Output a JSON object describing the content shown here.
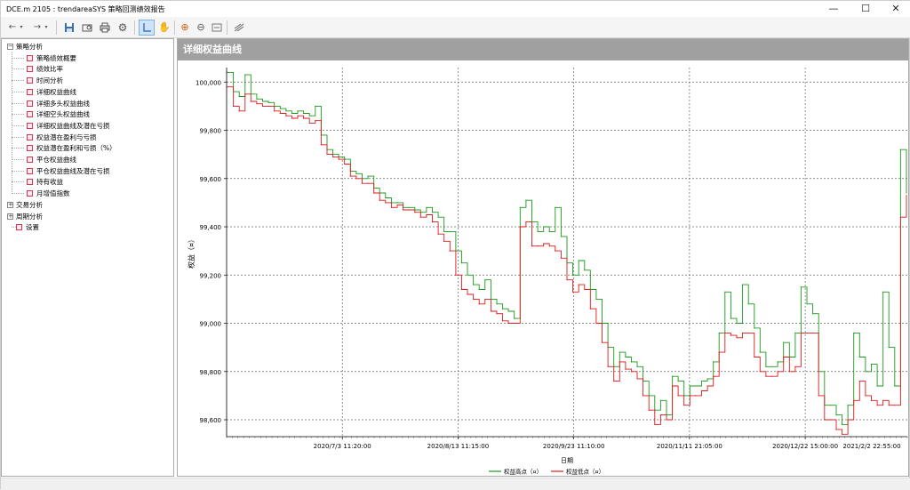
{
  "window": {
    "title": "DCE.m 2105 : trendareaSYS 策略回测绩效报告",
    "minimize_icon": "minimize-icon",
    "maximize_icon": "maximize-icon",
    "close_icon": "close-icon"
  },
  "toolbar": {
    "back_icon": "back-arrow-icon",
    "forward_icon": "forward-arrow-icon",
    "save_icon": "save-icon",
    "print_preview_icon": "print-preview-icon",
    "print_icon": "print-icon",
    "settings_icon": "gear-icon",
    "crosshair_icon": "crosshair-icon",
    "pan_icon": "hand-icon",
    "zoom_in_icon": "zoom-in-icon",
    "zoom_out_icon": "zoom-out-icon",
    "fit_icon": "fit-icon",
    "export_icon": "export-icon"
  },
  "tree": {
    "groups": [
      {
        "label": "策略分析",
        "expanded": true,
        "items": [
          "策略绩效概要",
          "绩效比率",
          "时间分析",
          "详细权益曲线",
          "详细多头权益曲线",
          "详细空头权益曲线",
          "详细权益曲线及潜在亏损",
          "权益潜在盈利与亏损",
          "权益潜在盈利和亏损（%）",
          "平仓权益曲线",
          "平仓权益曲线及潜在亏损",
          "持有收益",
          "月增值指数"
        ]
      },
      {
        "label": "交易分析",
        "expanded": false,
        "items": []
      },
      {
        "label": "周期分析",
        "expanded": false,
        "items": []
      }
    ],
    "settings_label": "设置"
  },
  "panel": {
    "title": "详细权益曲线"
  },
  "chart_data": {
    "type": "line",
    "title": "",
    "xlabel": "日期",
    "ylabel": "权益（¤）",
    "ylim": [
      98530,
      100060
    ],
    "y_ticks": [
      "100,000",
      "99,800",
      "99,600",
      "99,400",
      "99,200",
      "99,000",
      "98,800",
      "98,600"
    ],
    "y_tick_values": [
      100000,
      99800,
      99600,
      99400,
      99200,
      99000,
      98800,
      98600
    ],
    "x_ticks": [
      "2020/7/3 11:20:00",
      "2020/8/13 11:15:00",
      "2020/9/23 11:10:00",
      "2020/11/11 21:05:00",
      "2020/12/22 15:00:00",
      "2021/2/2 22:55:00"
    ],
    "x_tick_positions": [
      0.17,
      0.34,
      0.51,
      0.68,
      0.85,
      1.02
    ],
    "grid": true,
    "legend_position": "bottom",
    "series": [
      {
        "name": "权益高点（¤）",
        "color": "#1a9a1a",
        "values": [
          100040,
          99960,
          99940,
          100030,
          99950,
          99930,
          99920,
          99915,
          99900,
          99890,
          99880,
          99870,
          99880,
          99870,
          99860,
          99900,
          99780,
          99720,
          99700,
          99690,
          99680,
          99630,
          99620,
          99600,
          99610,
          99560,
          99540,
          99520,
          99500,
          99500,
          99480,
          99480,
          99470,
          99460,
          99480,
          99460,
          99440,
          99380,
          99380,
          99300,
          99250,
          99200,
          99160,
          99140,
          99180,
          99100,
          99080,
          99060,
          99050,
          99020,
          99480,
          99510,
          99420,
          99380,
          99400,
          99380,
          99480,
          99360,
          99250,
          99200,
          99260,
          99220,
          99140,
          99100,
          99000,
          98900,
          98820,
          98880,
          98860,
          98840,
          98820,
          98760,
          98700,
          98640,
          98680,
          98620,
          98780,
          98760,
          98700,
          98740,
          98740,
          98760,
          98770,
          98840,
          98960,
          99130,
          99020,
          99000,
          99160,
          99080,
          98980,
          98880,
          98820,
          98820,
          98840,
          98920,
          98860,
          98960,
          99150,
          99080,
          99040,
          98800,
          98660,
          98660,
          98620,
          98580,
          98660,
          98960,
          98860,
          98800,
          98830,
          98740,
          99130,
          98900,
          98740,
          99720,
          99540
        ]
      },
      {
        "name": "权益低点（¤）",
        "color": "#dd1a1a",
        "values": [
          99980,
          99900,
          99880,
          99950,
          99920,
          99910,
          99900,
          99900,
          99880,
          99870,
          99860,
          99850,
          99860,
          99850,
          99830,
          99840,
          99740,
          99700,
          99690,
          99680,
          99660,
          99610,
          99600,
          99580,
          99580,
          99540,
          99510,
          99500,
          99480,
          99490,
          99470,
          99470,
          99460,
          99440,
          99450,
          99420,
          99370,
          99340,
          99300,
          99200,
          99140,
          99120,
          99100,
          99080,
          99100,
          99050,
          99040,
          99010,
          99000,
          99000,
          99400,
          99420,
          99320,
          99320,
          99330,
          99320,
          99300,
          99270,
          99180,
          99130,
          99160,
          99140,
          99060,
          99000,
          98920,
          98820,
          98760,
          98840,
          98810,
          98800,
          98770,
          98700,
          98640,
          98580,
          98620,
          98600,
          98740,
          98700,
          98660,
          98700,
          98700,
          98720,
          98740,
          98780,
          98880,
          98960,
          98950,
          98940,
          98960,
          98960,
          98860,
          98800,
          98780,
          98780,
          98800,
          98860,
          98800,
          98820,
          98960,
          98960,
          98960,
          98700,
          98600,
          98600,
          98560,
          98540,
          98600,
          98680,
          98760,
          98700,
          98680,
          98660,
          98680,
          98660,
          98660,
          99440,
          99530
        ]
      }
    ]
  }
}
